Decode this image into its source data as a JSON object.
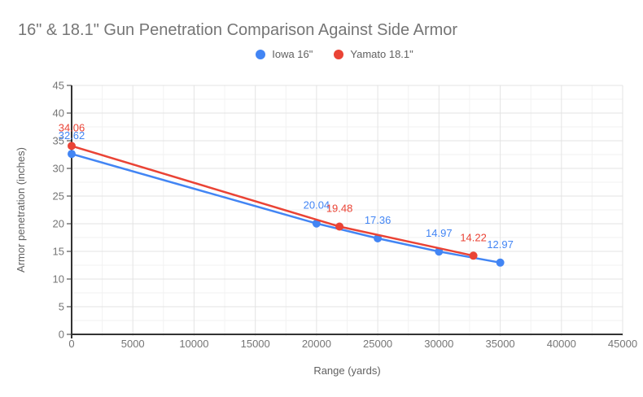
{
  "title": "16\" & 18.1\" Gun Penetration Comparison Against Side Armor",
  "chart_data": {
    "type": "line",
    "title": "16\" & 18.1\" Gun Penetration Comparison Against Side Armor",
    "xlabel": "Range (yards)",
    "ylabel": "Armor penetration (inches)",
    "xlim": [
      0,
      45000
    ],
    "ylim": [
      0,
      45
    ],
    "x_ticks": [
      0,
      5000,
      10000,
      15000,
      20000,
      25000,
      30000,
      35000,
      40000,
      45000
    ],
    "y_ticks": [
      0,
      5,
      10,
      15,
      20,
      25,
      30,
      35,
      40,
      45
    ],
    "x_major": 5000,
    "x_minor": 2500,
    "y_major": 5,
    "y_minor": 2.5,
    "grid": "major+minor",
    "legend_position": "top",
    "series": [
      {
        "name": "Iowa 16\"",
        "color": "#4285F4",
        "x": [
          0,
          20000,
          25000,
          30000,
          35000
        ],
        "y": [
          32.62,
          20.04,
          17.36,
          14.97,
          12.97
        ],
        "labels": [
          "32.62",
          "20.04",
          "17.36",
          "14.97",
          "12.97"
        ]
      },
      {
        "name": "Yamato 18.1\"",
        "color": "#EA4335",
        "x": [
          0,
          21872,
          32808
        ],
        "y": [
          34.06,
          19.48,
          14.22
        ],
        "labels": [
          "34.06",
          "19.48",
          "14.22"
        ]
      }
    ]
  },
  "colors": {
    "background": "#ffffff",
    "title_text": "#757575",
    "legend_text": "#616161",
    "tick_text": "#757575",
    "axis_title_text": "#616161",
    "axis_line": "#333333",
    "grid_major": "#e3e3e3",
    "grid_minor": "#f2f2f2"
  }
}
